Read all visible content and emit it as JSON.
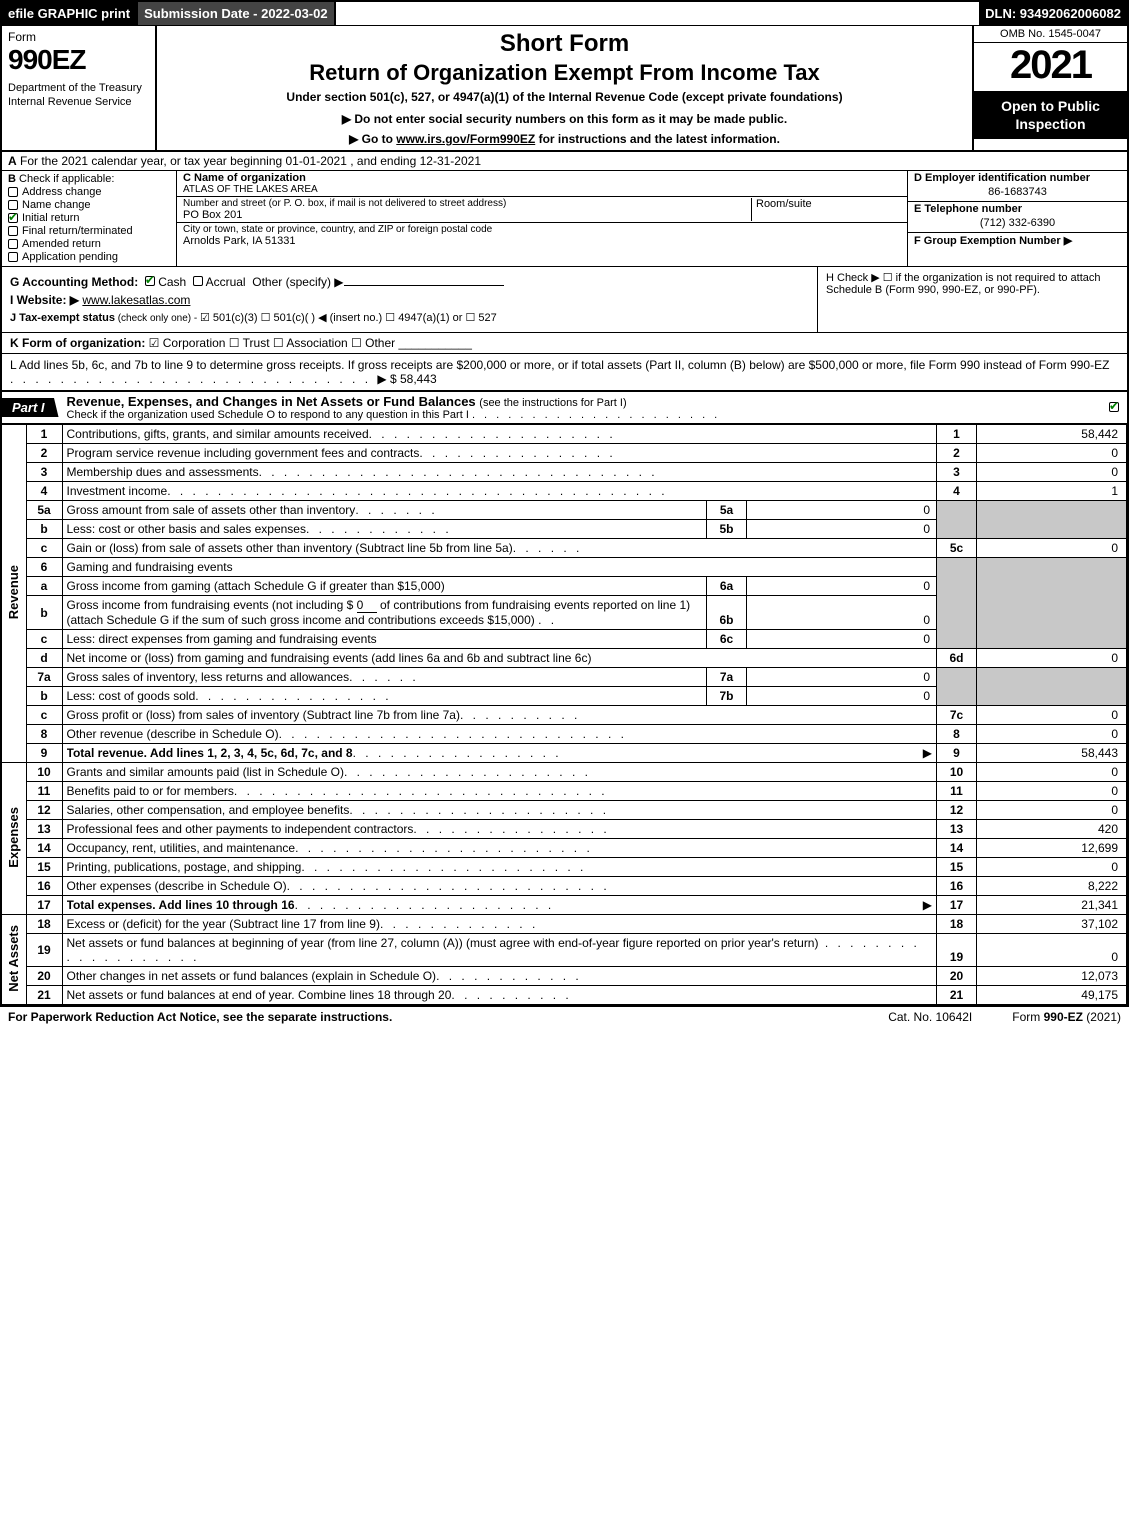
{
  "topbar": {
    "efile": "efile GRAPHIC print",
    "submission_label": "Submission Date - 2022-03-02",
    "dln": "DLN: 93492062006082"
  },
  "header": {
    "form_label": "Form",
    "form_number": "990EZ",
    "dept": "Department of the Treasury\nInternal Revenue Service",
    "short_form": "Short Form",
    "return_title": "Return of Organization Exempt From Income Tax",
    "under_section": "Under section 501(c), 527, or 4947(a)(1) of the Internal Revenue Code (except private foundations)",
    "warn_line": "Do not enter social security numbers on this form as it may be made public.",
    "goto_prefix": "Go to ",
    "goto_link": "www.irs.gov/Form990EZ",
    "goto_suffix": " for instructions and the latest information.",
    "omb": "OMB No. 1545-0047",
    "year": "2021",
    "inspect": "Open to Public Inspection"
  },
  "line_a": {
    "prefix": "A",
    "text": "  For the 2021 calendar year, or tax year beginning 01-01-2021 , and ending 12-31-2021"
  },
  "col_b": {
    "header_b": "B",
    "header_text": "  Check if applicable:",
    "items": [
      {
        "label": "Address change",
        "checked": false
      },
      {
        "label": "Name change",
        "checked": false
      },
      {
        "label": "Initial return",
        "checked": true
      },
      {
        "label": "Final return/terminated",
        "checked": false
      },
      {
        "label": "Amended return",
        "checked": false
      },
      {
        "label": "Application pending",
        "checked": false
      }
    ]
  },
  "col_c": {
    "name_label": "C Name of organization",
    "name_value": "ATLAS OF THE LAKES AREA",
    "addr_label": "Number and street (or P. O. box, if mail is not delivered to street address)",
    "addr_value": "PO Box 201",
    "room_label": "Room/suite",
    "city_label": "City or town, state or province, country, and ZIP or foreign postal code",
    "city_value": "Arnolds Park, IA  51331"
  },
  "col_d": {
    "ein_label": "D Employer identification number",
    "ein_value": "86-1683743",
    "tel_label": "E Telephone number",
    "tel_value": "(712) 332-6390",
    "group_label": "F Group Exemption Number   ▶"
  },
  "g_line": {
    "label": "G Accounting Method:",
    "cash": "Cash",
    "accrual": "Accrual",
    "other": "Other (specify) ▶",
    "underline": "___________________"
  },
  "h_line": {
    "text": "H  Check ▶  ☐  if the organization is not required to attach Schedule B (Form 990, 990-EZ, or 990-PF)."
  },
  "i_line": {
    "label": "I Website: ▶",
    "value": "www.lakesatlas.com"
  },
  "j_line": {
    "label": "J Tax-exempt status",
    "sub": " (check only one) - ",
    "opts": "☑ 501(c)(3)  ☐ 501(c)(  ) ◀ (insert no.)  ☐ 4947(a)(1) or  ☐ 527"
  },
  "k_line": {
    "label": "K Form of organization:",
    "opts": "  ☑ Corporation   ☐ Trust   ☐ Association   ☐ Other  ___________"
  },
  "l_line": {
    "text": "L Add lines 5b, 6c, and 7b to line 9 to determine gross receipts. If gross receipts are $200,000 or more, or if total assets (Part II, column (B) below) are $500,000 or more, file Form 990 instead of Form 990-EZ",
    "arrow": "▶ $",
    "amount": "58,443"
  },
  "part1": {
    "tab": "Part I",
    "title": "Revenue, Expenses, and Changes in Net Assets or Fund Balances ",
    "sub": "(see the instructions for Part I)",
    "check_line": "Check if the organization used Schedule O to respond to any question in this Part I",
    "checked": true
  },
  "side_labels": {
    "revenue": "Revenue",
    "expenses": "Expenses",
    "netassets": "Net Assets"
  },
  "rows": {
    "r1": {
      "no": "1",
      "desc": "Contributions, gifts, grants, and similar amounts received",
      "mn": "1",
      "mv": "58,442"
    },
    "r2": {
      "no": "2",
      "desc": "Program service revenue including government fees and contracts",
      "mn": "2",
      "mv": "0"
    },
    "r3": {
      "no": "3",
      "desc": "Membership dues and assessments",
      "mn": "3",
      "mv": "0"
    },
    "r4": {
      "no": "4",
      "desc": "Investment income",
      "mn": "4",
      "mv": "1"
    },
    "r5a": {
      "no": "5a",
      "desc": "Gross amount from sale of assets other than inventory",
      "sn": "5a",
      "sv": "0"
    },
    "r5b": {
      "no": "b",
      "desc": "Less: cost or other basis and sales expenses",
      "sn": "5b",
      "sv": "0"
    },
    "r5c": {
      "no": "c",
      "desc": "Gain or (loss) from sale of assets other than inventory (Subtract line 5b from line 5a)",
      "mn": "5c",
      "mv": "0"
    },
    "r6": {
      "no": "6",
      "desc": "Gaming and fundraising events"
    },
    "r6a": {
      "no": "a",
      "desc": "Gross income from gaming (attach Schedule G if greater than $15,000)",
      "sn": "6a",
      "sv": "0"
    },
    "r6b": {
      "no": "b",
      "desc1": "Gross income from fundraising events (not including $ ",
      "underline": "0",
      "desc2": "                    of contributions from fundraising events reported on line 1) (attach Schedule G if the sum of such gross income and contributions exceeds $15,000)",
      "sn": "6b",
      "sv": "0"
    },
    "r6c": {
      "no": "c",
      "desc": "Less: direct expenses from gaming and fundraising events",
      "sn": "6c",
      "sv": "0"
    },
    "r6d": {
      "no": "d",
      "desc": "Net income or (loss) from gaming and fundraising events (add lines 6a and 6b and subtract line 6c)",
      "mn": "6d",
      "mv": "0"
    },
    "r7a": {
      "no": "7a",
      "desc": "Gross sales of inventory, less returns and allowances",
      "sn": "7a",
      "sv": "0"
    },
    "r7b": {
      "no": "b",
      "desc": "Less: cost of goods sold",
      "sn": "7b",
      "sv": "0"
    },
    "r7c": {
      "no": "c",
      "desc": "Gross profit or (loss) from sales of inventory (Subtract line 7b from line 7a)",
      "mn": "7c",
      "mv": "0"
    },
    "r8": {
      "no": "8",
      "desc": "Other revenue (describe in Schedule O)",
      "mn": "8",
      "mv": "0"
    },
    "r9": {
      "no": "9",
      "desc": "Total revenue. Add lines 1, 2, 3, 4, 5c, 6d, 7c, and 8",
      "arrow": true,
      "mn": "9",
      "mv": "58,443",
      "bold": true
    },
    "r10": {
      "no": "10",
      "desc": "Grants and similar amounts paid (list in Schedule O)",
      "mn": "10",
      "mv": "0"
    },
    "r11": {
      "no": "11",
      "desc": "Benefits paid to or for members",
      "mn": "11",
      "mv": "0"
    },
    "r12": {
      "no": "12",
      "desc": "Salaries, other compensation, and employee benefits",
      "mn": "12",
      "mv": "0"
    },
    "r13": {
      "no": "13",
      "desc": "Professional fees and other payments to independent contractors",
      "mn": "13",
      "mv": "420"
    },
    "r14": {
      "no": "14",
      "desc": "Occupancy, rent, utilities, and maintenance",
      "mn": "14",
      "mv": "12,699"
    },
    "r15": {
      "no": "15",
      "desc": "Printing, publications, postage, and shipping",
      "mn": "15",
      "mv": "0"
    },
    "r16": {
      "no": "16",
      "desc": "Other expenses (describe in Schedule O)",
      "mn": "16",
      "mv": "8,222"
    },
    "r17": {
      "no": "17",
      "desc": "Total expenses. Add lines 10 through 16",
      "arrow": true,
      "mn": "17",
      "mv": "21,341",
      "bold": true
    },
    "r18": {
      "no": "18",
      "desc": "Excess or (deficit) for the year (Subtract line 17 from line 9)",
      "mn": "18",
      "mv": "37,102"
    },
    "r19": {
      "no": "19",
      "desc": "Net assets or fund balances at beginning of year (from line 27, column (A)) (must agree with end-of-year figure reported on prior year's return)",
      "mn": "19",
      "mv": "0"
    },
    "r20": {
      "no": "20",
      "desc": "Other changes in net assets or fund balances (explain in Schedule O)",
      "mn": "20",
      "mv": "12,073"
    },
    "r21": {
      "no": "21",
      "desc": "Net assets or fund balances at end of year. Combine lines 18 through 20",
      "mn": "21",
      "mv": "49,175"
    }
  },
  "footer": {
    "left": "For Paperwork Reduction Act Notice, see the separate instructions.",
    "mid": "Cat. No. 10642I",
    "right_prefix": "Form ",
    "right_form": "990-EZ",
    "right_suffix": " (2021)"
  },
  "colors": {
    "black": "#000000",
    "grey": "#c8c8c8",
    "darkgrey": "#444444",
    "green_check": "#008000"
  }
}
